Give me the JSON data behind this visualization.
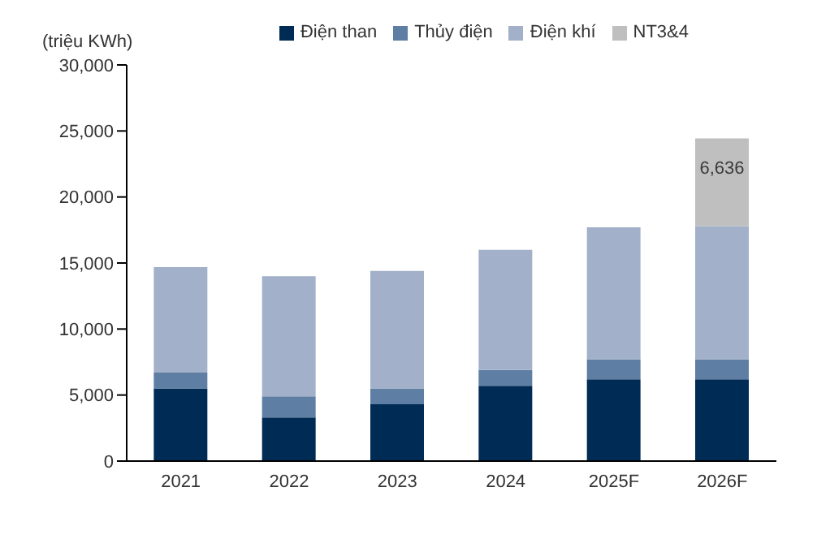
{
  "chart_data": {
    "type": "bar",
    "ylabel": "(triệu KWh)",
    "categories": [
      "2021",
      "2022",
      "2023",
      "2024",
      "2025F",
      "2026F"
    ],
    "stacked": true,
    "legend": "top",
    "grid": false,
    "ylim": [
      0,
      30000
    ],
    "yticks": [
      {
        "value": 0,
        "label": "0"
      },
      {
        "value": 5000,
        "label": "5,000"
      },
      {
        "value": 10000,
        "label": "10,000"
      },
      {
        "value": 15000,
        "label": "15,000"
      },
      {
        "value": 20000,
        "label": "20,000"
      },
      {
        "value": 25000,
        "label": "25,000"
      },
      {
        "value": 30000,
        "label": "30,000"
      }
    ],
    "series": [
      {
        "name": "Điện than",
        "color": "#002b55",
        "values": [
          5500,
          3300,
          4300,
          5700,
          6200,
          6200
        ]
      },
      {
        "name": "Thủy điện",
        "color": "#5f7ea3",
        "values": [
          1200,
          1600,
          1200,
          1200,
          1500,
          1500
        ]
      },
      {
        "name": "Điện khí",
        "color": "#a2b1c9",
        "values": [
          8000,
          9100,
          8900,
          9100,
          10000,
          10100
        ]
      },
      {
        "name": "NT3&4",
        "color": "#bfbfbf",
        "values": [
          null,
          null,
          null,
          null,
          null,
          6636
        ],
        "value_labels": [
          null,
          null,
          null,
          null,
          null,
          "6,636"
        ]
      }
    ]
  }
}
